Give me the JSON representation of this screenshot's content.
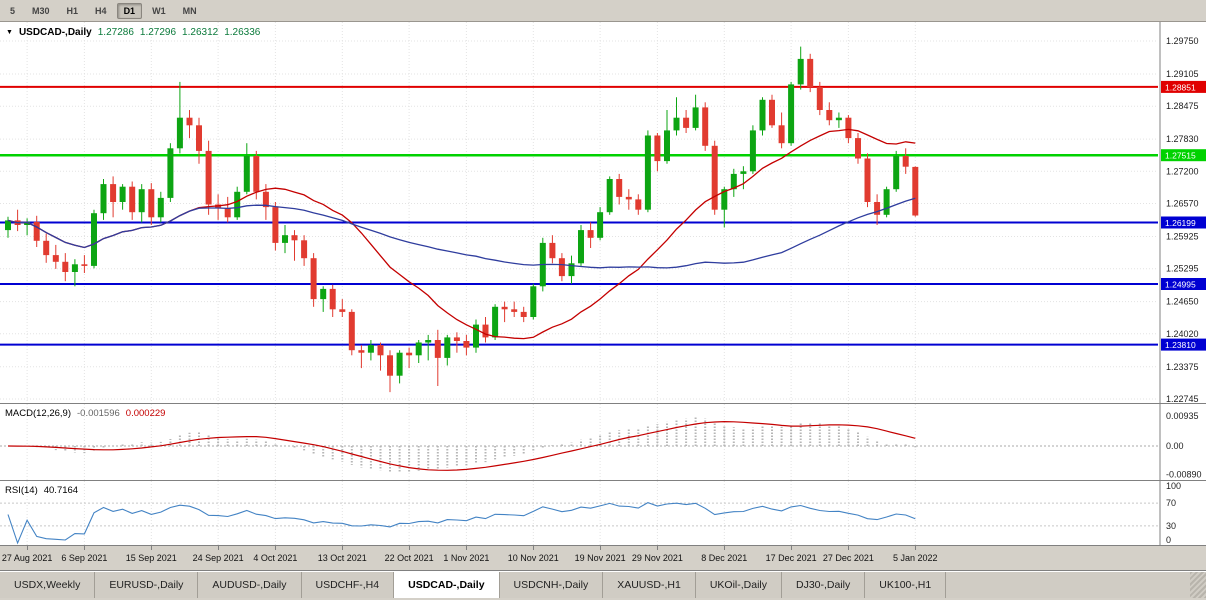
{
  "toolbar": {
    "timeframes": [
      "5",
      "M30",
      "H1",
      "H4",
      "D1",
      "W1",
      "MN"
    ],
    "active": "D1"
  },
  "header": {
    "collapse_icon": "▼",
    "symbol": "USDCAD-,Daily",
    "open": "1.27286",
    "high": "1.27296",
    "low": "1.26312",
    "close": "1.26336"
  },
  "macd_panel": {
    "label": "MACD(12,26,9)",
    "main_value": "-0.001596",
    "signal_value": "0.000229",
    "axis": [
      "0.00935",
      "0.00",
      "-0.00890"
    ]
  },
  "rsi_panel": {
    "label": "RSI(14)",
    "value": "40.7164",
    "axis": [
      "100",
      "70",
      "30",
      "0"
    ],
    "levels": [
      70,
      30
    ]
  },
  "tabs": {
    "items": [
      "USDX,Weekly",
      "EURUSD-,Daily",
      "AUDUSD-,Daily",
      "USDCHF-,H4",
      "USDCAD-,Daily",
      "USDCNH-,Daily",
      "XAUUSD-,H1",
      "UKOil-,Daily",
      "DJ30-,Daily",
      "UK100-,H1"
    ],
    "active": "USDCAD-,Daily"
  },
  "colors": {
    "bull": "#0da513",
    "bear": "#e13b30",
    "ma_fast": "#c40000",
    "ma_slow": "#2f3d9e",
    "macd_hist": "#b6b6b6",
    "macd_signal": "#c40000",
    "rsi_line": "#4383c4",
    "grid": "#e3e3e3",
    "quote_text": "#0b7a3b"
  },
  "chart_data": {
    "type": "candlestick",
    "title": "USDCAD-,Daily",
    "price_axis": [
      "1.29750",
      "1.29105",
      "1.28475",
      "1.27830",
      "1.27200",
      "1.26570",
      "1.25925",
      "1.25295",
      "1.24650",
      "1.24020",
      "1.23375",
      "1.22745"
    ],
    "x_labels": [
      {
        "text": "27 Aug 2021",
        "i": 2
      },
      {
        "text": "6 Sep 2021",
        "i": 8
      },
      {
        "text": "15 Sep 2021",
        "i": 15
      },
      {
        "text": "24 Sep 2021",
        "i": 22
      },
      {
        "text": "4 Oct 2021",
        "i": 28
      },
      {
        "text": "13 Oct 2021",
        "i": 35
      },
      {
        "text": "22 Oct 2021",
        "i": 42
      },
      {
        "text": "1 Nov 2021",
        "i": 48
      },
      {
        "text": "10 Nov 2021",
        "i": 55
      },
      {
        "text": "19 Nov 2021",
        "i": 62
      },
      {
        "text": "29 Nov 2021",
        "i": 68
      },
      {
        "text": "8 Dec 2021",
        "i": 75
      },
      {
        "text": "17 Dec 2021",
        "i": 82
      },
      {
        "text": "27 Dec 2021",
        "i": 88
      },
      {
        "text": "5 Jan 2022",
        "i": 95
      }
    ],
    "hlines": [
      {
        "price": 1.28851,
        "tag": "1.28851",
        "color": "#e00000",
        "width": 2
      },
      {
        "price": 1.27515,
        "tag": "1.27515",
        "color": "#00d200",
        "width": 2.5
      },
      {
        "price": 1.26199,
        "tag": "1.26199",
        "color": "#0000d2",
        "width": 2
      },
      {
        "price": 1.24995,
        "tag": "1.24995",
        "color": "#0000d2",
        "width": 2
      },
      {
        "price": 1.2381,
        "tag": "1.23810",
        "color": "#0000d2",
        "width": 2
      }
    ],
    "moving_averages": [
      {
        "name": "ma-fast",
        "period": 20,
        "color": "#c40000"
      },
      {
        "name": "ma-slow",
        "period": 50,
        "color": "#2f3d9e"
      }
    ],
    "candles": [
      [
        1.2605,
        1.2631,
        1.259,
        1.2624
      ],
      [
        1.2624,
        1.2645,
        1.2603,
        1.2615
      ],
      [
        1.2615,
        1.2628,
        1.2595,
        1.2621
      ],
      [
        1.2621,
        1.2633,
        1.2572,
        1.2584
      ],
      [
        1.2584,
        1.2598,
        1.2541,
        1.2556
      ],
      [
        1.2556,
        1.2576,
        1.2529,
        1.2543
      ],
      [
        1.2543,
        1.256,
        1.2505,
        1.2523
      ],
      [
        1.2523,
        1.2548,
        1.2495,
        1.2538
      ],
      [
        1.2538,
        1.2556,
        1.2521,
        1.2535
      ],
      [
        1.2535,
        1.2645,
        1.253,
        1.2638
      ],
      [
        1.2638,
        1.2705,
        1.2625,
        1.2695
      ],
      [
        1.2695,
        1.271,
        1.263,
        1.266
      ],
      [
        1.266,
        1.2695,
        1.2645,
        1.269
      ],
      [
        1.269,
        1.27,
        1.2625,
        1.264
      ],
      [
        1.264,
        1.2695,
        1.262,
        1.2685
      ],
      [
        1.2685,
        1.2697,
        1.2615,
        1.263
      ],
      [
        1.263,
        1.268,
        1.262,
        1.2668
      ],
      [
        1.2668,
        1.2775,
        1.266,
        1.2765
      ],
      [
        1.2765,
        1.2895,
        1.2755,
        1.2825
      ],
      [
        1.2825,
        1.284,
        1.2785,
        1.281
      ],
      [
        1.281,
        1.2825,
        1.2735,
        1.276
      ],
      [
        1.276,
        1.278,
        1.2635,
        1.2655
      ],
      [
        1.2655,
        1.2675,
        1.2625,
        1.2648
      ],
      [
        1.2648,
        1.267,
        1.262,
        1.263
      ],
      [
        1.263,
        1.269,
        1.2625,
        1.268
      ],
      [
        1.268,
        1.2775,
        1.2675,
        1.275
      ],
      [
        1.275,
        1.276,
        1.2665,
        1.268
      ],
      [
        1.268,
        1.2695,
        1.2625,
        1.265
      ],
      [
        1.265,
        1.266,
        1.2565,
        1.258
      ],
      [
        1.258,
        1.2615,
        1.256,
        1.2595
      ],
      [
        1.2595,
        1.2605,
        1.2545,
        1.2585
      ],
      [
        1.2585,
        1.2595,
        1.2535,
        1.255
      ],
      [
        1.255,
        1.256,
        1.2455,
        1.247
      ],
      [
        1.247,
        1.2495,
        1.2445,
        1.249
      ],
      [
        1.249,
        1.2498,
        1.2435,
        1.245
      ],
      [
        1.245,
        1.247,
        1.2435,
        1.2445
      ],
      [
        1.2445,
        1.245,
        1.236,
        1.237
      ],
      [
        1.237,
        1.238,
        1.2335,
        1.2365
      ],
      [
        1.2365,
        1.239,
        1.235,
        1.238
      ],
      [
        1.238,
        1.2385,
        1.233,
        1.236
      ],
      [
        1.236,
        1.237,
        1.2288,
        1.232
      ],
      [
        1.232,
        1.237,
        1.2305,
        1.2365
      ],
      [
        1.2365,
        1.2375,
        1.2335,
        1.236
      ],
      [
        1.236,
        1.239,
        1.2345,
        1.2385
      ],
      [
        1.2385,
        1.24,
        1.235,
        1.239
      ],
      [
        1.239,
        1.241,
        1.23,
        1.2355
      ],
      [
        1.2355,
        1.24,
        1.234,
        1.2395
      ],
      [
        1.2395,
        1.2405,
        1.2365,
        1.2388
      ],
      [
        1.2388,
        1.24,
        1.236,
        1.2375
      ],
      [
        1.2375,
        1.243,
        1.2365,
        1.242
      ],
      [
        1.242,
        1.2435,
        1.2385,
        1.2395
      ],
      [
        1.2395,
        1.246,
        1.239,
        1.2455
      ],
      [
        1.2455,
        1.2465,
        1.2425,
        1.245
      ],
      [
        1.245,
        1.2465,
        1.2435,
        1.2445
      ],
      [
        1.2445,
        1.2455,
        1.2425,
        1.2435
      ],
      [
        1.2435,
        1.25,
        1.243,
        1.2495
      ],
      [
        1.2495,
        1.259,
        1.2485,
        1.258
      ],
      [
        1.258,
        1.2595,
        1.254,
        1.255
      ],
      [
        1.255,
        1.256,
        1.2505,
        1.2515
      ],
      [
        1.2515,
        1.2555,
        1.25,
        1.254
      ],
      [
        1.254,
        1.2615,
        1.2535,
        1.2605
      ],
      [
        1.2605,
        1.262,
        1.257,
        1.259
      ],
      [
        1.259,
        1.265,
        1.2585,
        1.264
      ],
      [
        1.264,
        1.271,
        1.2635,
        1.2705
      ],
      [
        1.2705,
        1.2715,
        1.2655,
        1.267
      ],
      [
        1.267,
        1.2685,
        1.2645,
        1.2665
      ],
      [
        1.2665,
        1.2675,
        1.2635,
        1.2645
      ],
      [
        1.2645,
        1.28,
        1.264,
        1.279
      ],
      [
        1.279,
        1.2795,
        1.272,
        1.274
      ],
      [
        1.274,
        1.284,
        1.2735,
        1.28
      ],
      [
        1.28,
        1.2865,
        1.279,
        1.2825
      ],
      [
        1.2825,
        1.284,
        1.2795,
        1.2805
      ],
      [
        1.2805,
        1.287,
        1.28,
        1.2845
      ],
      [
        1.2845,
        1.2855,
        1.276,
        1.277
      ],
      [
        1.277,
        1.278,
        1.2635,
        1.2645
      ],
      [
        1.2645,
        1.269,
        1.261,
        1.2685
      ],
      [
        1.2685,
        1.2725,
        1.267,
        1.2715
      ],
      [
        1.2715,
        1.273,
        1.2685,
        1.272
      ],
      [
        1.272,
        1.281,
        1.2715,
        1.28
      ],
      [
        1.28,
        1.2865,
        1.279,
        1.286
      ],
      [
        1.286,
        1.287,
        1.2805,
        1.281
      ],
      [
        1.281,
        1.2835,
        1.2765,
        1.2775
      ],
      [
        1.2775,
        1.2895,
        1.277,
        1.289
      ],
      [
        1.289,
        1.2964,
        1.288,
        1.294
      ],
      [
        1.294,
        1.295,
        1.2875,
        1.2885
      ],
      [
        1.2885,
        1.2895,
        1.283,
        1.284
      ],
      [
        1.284,
        1.2855,
        1.281,
        1.282
      ],
      [
        1.282,
        1.2835,
        1.2805,
        1.2825
      ],
      [
        1.2825,
        1.283,
        1.2775,
        1.2785
      ],
      [
        1.2785,
        1.2795,
        1.2735,
        1.2745
      ],
      [
        1.2745,
        1.2755,
        1.265,
        1.266
      ],
      [
        1.266,
        1.2675,
        1.2615,
        1.2635
      ],
      [
        1.2635,
        1.269,
        1.263,
        1.2685
      ],
      [
        1.2685,
        1.276,
        1.268,
        1.275
      ],
      [
        1.275,
        1.2765,
        1.2715,
        1.2729
      ],
      [
        1.27286,
        1.27296,
        1.26312,
        1.26336
      ]
    ]
  }
}
